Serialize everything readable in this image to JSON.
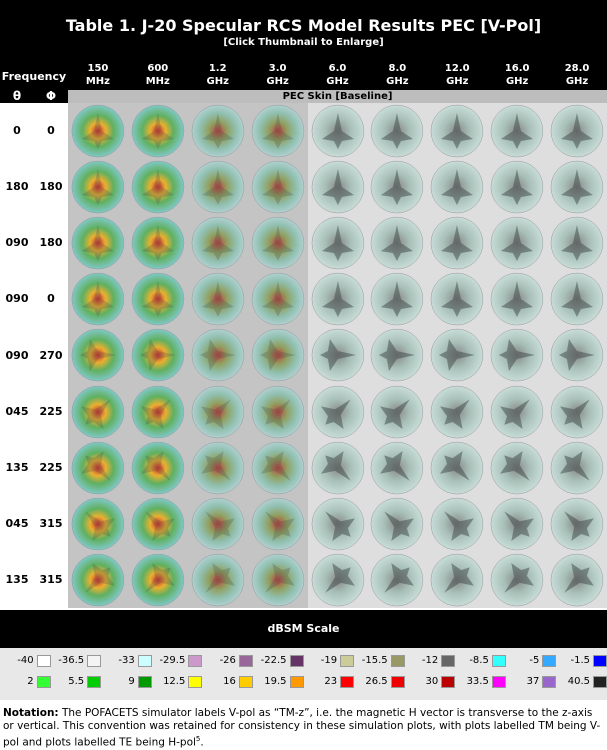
{
  "header": {
    "title": "Table 1. J-20 Specular RCS Model Results PEC [V-Pol]",
    "subtitle": "[Click Thumbnail to Enlarge]"
  },
  "table": {
    "frequency_label": "Frequency",
    "theta_label": "θ",
    "phi_label": "Φ",
    "columns": [
      {
        "value": "150",
        "unit": "MHz"
      },
      {
        "value": "600",
        "unit": "MHz"
      },
      {
        "value": "1.2",
        "unit": "GHz"
      },
      {
        "value": "3.0",
        "unit": "GHz"
      },
      {
        "value": "6.0",
        "unit": "GHz"
      },
      {
        "value": "8.0",
        "unit": "GHz"
      },
      {
        "value": "12.0",
        "unit": "GHz"
      },
      {
        "value": "16.0",
        "unit": "GHz"
      },
      {
        "value": "28.0",
        "unit": "GHz"
      }
    ],
    "section_label": "PEC Skin [Baseline]",
    "rows": [
      [
        "0",
        "0"
      ],
      [
        "180",
        "180"
      ],
      [
        "090",
        "180"
      ],
      [
        "090",
        "0"
      ],
      [
        "090",
        "270"
      ],
      [
        "045",
        "225"
      ],
      [
        "135",
        "225"
      ],
      [
        "045",
        "315"
      ],
      [
        "135",
        "315"
      ]
    ]
  },
  "scale": {
    "title": "dBSM Scale",
    "rows": [
      [
        {
          "label": "-40",
          "color": "#ffffff"
        },
        {
          "label": "-36.5",
          "color": "#f4f4f4"
        },
        {
          "label": "-33",
          "color": "#ccffff"
        },
        {
          "label": "-29.5",
          "color": "#cc99cc"
        },
        {
          "label": "-26",
          "color": "#996699"
        },
        {
          "label": "-22.5",
          "color": "#663366"
        },
        {
          "label": "-19",
          "color": "#cccc99"
        },
        {
          "label": "-15.5",
          "color": "#999966"
        },
        {
          "label": "-12",
          "color": "#666666"
        },
        {
          "label": "-8.5",
          "color": "#33ffff"
        },
        {
          "label": "-5",
          "color": "#33aaff"
        },
        {
          "label": "-1.5",
          "color": "#0000ff"
        }
      ],
      [
        {
          "label": "2",
          "color": "#33ff33"
        },
        {
          "label": "5.5",
          "color": "#00cc00"
        },
        {
          "label": "9",
          "color": "#009900"
        },
        {
          "label": "12.5",
          "color": "#ffff00"
        },
        {
          "label": "16",
          "color": "#ffcc00"
        },
        {
          "label": "19.5",
          "color": "#ff9900"
        },
        {
          "label": "23",
          "color": "#ff0000"
        },
        {
          "label": "26.5",
          "color": "#ee0000"
        },
        {
          "label": "30",
          "color": "#bb0000"
        },
        {
          "label": "33.5",
          "color": "#ff00ff"
        },
        {
          "label": "37",
          "color": "#9966cc"
        },
        {
          "label": "40.5",
          "color": "#222222"
        }
      ]
    ]
  },
  "notation": {
    "label": "Notation:",
    "text": "The POFACETS simulator labels V-pol as “TM-z”, i.e. the magnetic H vector is transverse to the z-axis or vertical. This convention was retained for consistency in these simulation plots, with plots labelled TM being V-pol and plots labelled TE being H-pol",
    "sup": "5",
    "end": "."
  }
}
